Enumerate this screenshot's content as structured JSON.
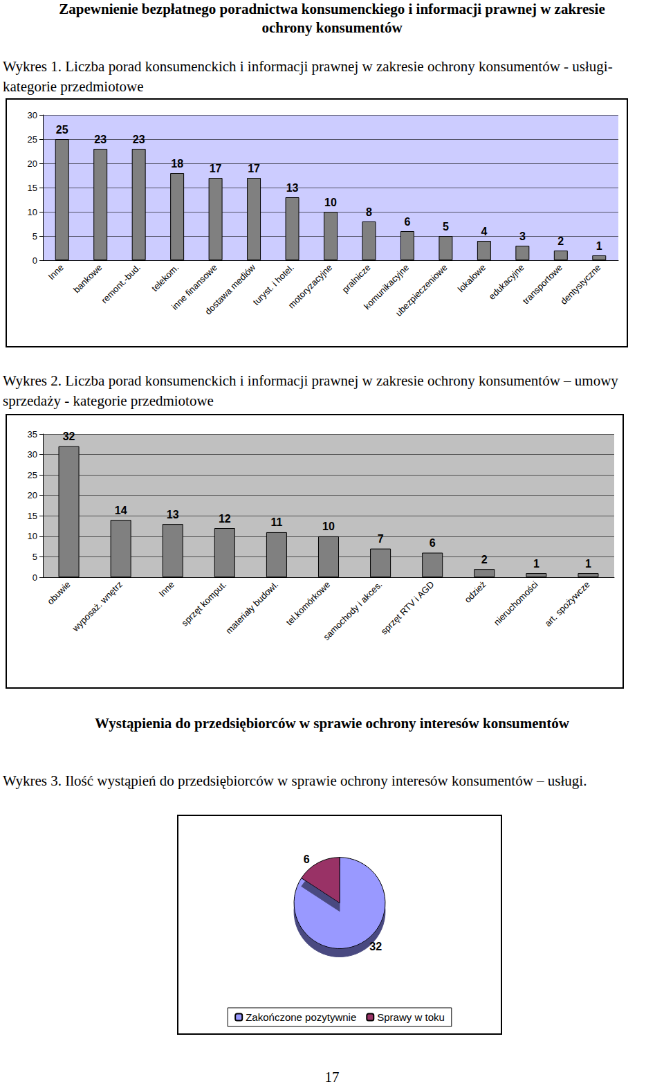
{
  "document": {
    "heading": "Zapewnienie bezpłatnego poradnictwa konsumenckiego i informacji prawnej w zakresie ochrony konsumentów",
    "section_heading": "Wystąpienia do przedsiębiorców w sprawie ochrony interesów konsumentów",
    "page_number": "17"
  },
  "chart_data": [
    {
      "type": "bar",
      "title": "Wykres 1. Liczba porad konsumenckich i informacji prawnej w zakresie ochrony konsumentów - usługi- kategorie przedmiotowe",
      "categories": [
        "Inne",
        "bankowe",
        "remont.-bud.",
        "telekom.",
        "inne finansowe",
        "dostawa mediów",
        "turyst. i hotel.",
        "motoryzacyjne",
        "pralnicze",
        "komunikacyjne",
        "ubezpieczeniowe",
        "lokalowe",
        "edukacyjne",
        "transportowe",
        "dentystyczne"
      ],
      "values": [
        25,
        23,
        23,
        18,
        17,
        17,
        13,
        10,
        8,
        6,
        5,
        4,
        3,
        2,
        1
      ],
      "color": "#808080",
      "ylim": [
        0,
        30
      ],
      "yticks": [
        0,
        5,
        10,
        15,
        20,
        25,
        30
      ],
      "grid": true,
      "data_labels": true
    },
    {
      "type": "bar",
      "title": "Wykres 2. Liczba porad konsumenckich i informacji prawnej w zakresie ochrony konsumentów – umowy sprzedaży - kategorie przedmiotowe",
      "categories": [
        "obuwie",
        "wyposaż. wnętrz",
        "Inne",
        "sprzęt komput.",
        "materiały budowl.",
        "tel.komórkowe",
        "samochody i akces.",
        "sprzęt RTV i AGD",
        "odzież",
        "nieruchomości",
        "art. spożywcze"
      ],
      "values": [
        32,
        14,
        13,
        12,
        11,
        10,
        7,
        6,
        2,
        1,
        1
      ],
      "color": "#808080",
      "ylim": [
        0,
        35
      ],
      "yticks": [
        0,
        5,
        10,
        15,
        20,
        25,
        30,
        35
      ],
      "grid": true,
      "data_labels": true
    },
    {
      "type": "pie",
      "title": "Wykres 3. Ilość wystąpień do przedsiębiorców w sprawie ochrony interesów konsumentów – usługi.",
      "categories": [
        "Zakończone pozytywnie",
        "Sprawy w toku"
      ],
      "values": [
        32,
        6
      ],
      "colors": [
        "#9999ff",
        "#993366"
      ],
      "legend": "bottom",
      "data_labels": true
    }
  ]
}
